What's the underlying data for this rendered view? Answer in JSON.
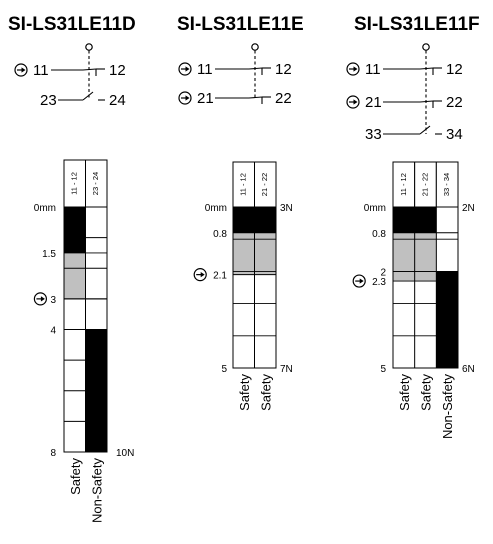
{
  "switches": [
    {
      "id": "d",
      "model": "SI-LS31LE11D",
      "contacts": [
        {
          "terminals": [
            "11",
            "12"
          ],
          "type": "NC",
          "positive_opening": true
        },
        {
          "terminals": [
            "23",
            "24"
          ],
          "type": "NO",
          "positive_opening": false
        }
      ],
      "chart": {
        "columns": [
          {
            "header": "11 - 12",
            "label": "Safety",
            "closed_until_mm": 1.5,
            "transition_end_mm": 3
          },
          {
            "header": "23 - 24",
            "label": "Non-Safety",
            "closed_from_mm": 4
          }
        ],
        "travel_max_mm": 8,
        "labels": [
          {
            "text": "0mm",
            "at_mm": 0,
            "positive_opening": false
          },
          {
            "text": "1.5",
            "at_mm": 1.5,
            "positive_opening": false
          },
          {
            "text": "3",
            "at_mm": 3,
            "positive_opening": true
          },
          {
            "text": "4",
            "at_mm": 4,
            "positive_opening": false
          },
          {
            "text": "8",
            "at_mm": 8,
            "positive_opening": false
          }
        ],
        "force_end": "10N"
      }
    },
    {
      "id": "e",
      "model": "SI-LS31LE11E",
      "contacts": [
        {
          "terminals": [
            "11",
            "12"
          ],
          "type": "NC",
          "positive_opening": true
        },
        {
          "terminals": [
            "21",
            "22"
          ],
          "type": "NC",
          "positive_opening": true
        }
      ],
      "chart": {
        "columns": [
          {
            "header": "11 - 12",
            "label": "Safety",
            "closed_until_mm": 0.8,
            "transition_end_mm": 2.1
          },
          {
            "header": "21 - 22",
            "label": "Safety",
            "closed_until_mm": 0.8,
            "transition_end_mm": 2.1
          }
        ],
        "travel_max_mm": 5,
        "labels": [
          {
            "text": "0mm",
            "at_mm": 0,
            "positive_opening": false
          },
          {
            "text": "0.8",
            "at_mm": 0.8,
            "positive_opening": false
          },
          {
            "text": "2.1",
            "at_mm": 2.1,
            "positive_opening": true
          },
          {
            "text": "5",
            "at_mm": 5,
            "positive_opening": false
          }
        ],
        "force_start": "3N",
        "force_end": "7N"
      }
    },
    {
      "id": "f",
      "model": "SI-LS31LE11F",
      "contacts": [
        {
          "terminals": [
            "11",
            "12"
          ],
          "type": "NC",
          "positive_opening": true
        },
        {
          "terminals": [
            "21",
            "22"
          ],
          "type": "NC",
          "positive_opening": true
        },
        {
          "terminals": [
            "33",
            "34"
          ],
          "type": "NO",
          "positive_opening": false
        }
      ],
      "chart": {
        "columns": [
          {
            "header": "11 - 12",
            "label": "Safety",
            "closed_until_mm": 0.8,
            "transition_end_mm": 2.3
          },
          {
            "header": "21 - 22",
            "label": "Safety",
            "closed_until_mm": 0.8,
            "transition_end_mm": 2.3
          },
          {
            "header": "33 - 34",
            "label": "Non-Safety",
            "closed_from_mm": 2
          }
        ],
        "travel_max_mm": 5,
        "labels": [
          {
            "text": "0mm",
            "at_mm": 0,
            "positive_opening": false
          },
          {
            "text": "0.8",
            "at_mm": 0.8,
            "positive_opening": false
          },
          {
            "text": "2",
            "at_mm": 2,
            "positive_opening": false
          },
          {
            "text": "2.3",
            "at_mm": 2.3,
            "positive_opening": true
          },
          {
            "text": "5",
            "at_mm": 5,
            "positive_opening": false
          }
        ],
        "force_start": "2N",
        "force_end": "6N"
      }
    }
  ],
  "colors": {
    "closed": "#000000",
    "transition": "#c0c0c0",
    "open": "#ffffff",
    "line": "#000000"
  }
}
